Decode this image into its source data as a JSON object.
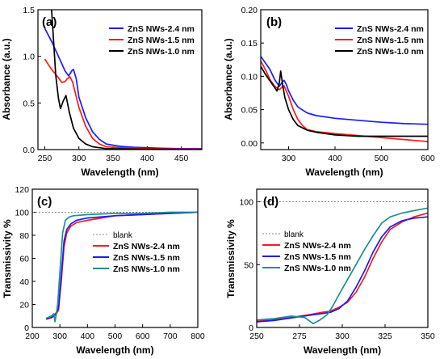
{
  "colors": {
    "blue": "#1a1aff",
    "red": "#ff1a1a",
    "black": "#000000",
    "teal": "#1a9090",
    "blank": "#888888"
  },
  "chart_data": [
    {
      "panel": "(a)",
      "type": "line",
      "xlabel": "Wavelength (nm)",
      "ylabel": "Absorbance (a.u.)",
      "xlim": [
        240,
        480
      ],
      "ylim": [
        0,
        1.5
      ],
      "xticks": [
        250,
        300,
        350,
        400,
        450
      ],
      "xtick_labels": [
        "250",
        "300",
        "350",
        "400",
        "450"
      ],
      "yticks": [
        0,
        0.5,
        1.0,
        1.5
      ],
      "ytick_labels": [
        "0.0",
        "0.5",
        "1.0",
        "1.5"
      ],
      "legend_position": "top-right",
      "series": [
        {
          "name": "ZnS NWs-2.4 nm",
          "color": "blue",
          "x": [
            250,
            260,
            270,
            280,
            285,
            290,
            292,
            296,
            300,
            310,
            320,
            330,
            340,
            360,
            380,
            400,
            420,
            450,
            480
          ],
          "y": [
            1.3,
            1.16,
            1.0,
            0.84,
            0.79,
            0.85,
            0.86,
            0.76,
            0.56,
            0.34,
            0.19,
            0.11,
            0.06,
            0.035,
            0.025,
            0.02,
            0.015,
            0.01,
            0.01
          ]
        },
        {
          "name": "ZnS NWs-1.5 nm",
          "color": "red",
          "x": [
            250,
            260,
            270,
            275,
            280,
            283,
            287,
            291,
            295,
            300,
            310,
            320,
            330,
            340,
            360,
            400,
            450,
            480
          ],
          "y": [
            0.97,
            0.86,
            0.77,
            0.72,
            0.73,
            0.76,
            0.78,
            0.72,
            0.6,
            0.45,
            0.25,
            0.12,
            0.06,
            0.03,
            0.02,
            0.01,
            0.005,
            0.005
          ]
        },
        {
          "name": "ZnS NWs-1.0 nm",
          "color": "black",
          "x": [
            260,
            263,
            266,
            270,
            273,
            277,
            281,
            286,
            292,
            300,
            310,
            320,
            340,
            380,
            480
          ],
          "y": [
            1.5,
            1.15,
            0.8,
            0.55,
            0.44,
            0.52,
            0.58,
            0.4,
            0.23,
            0.12,
            0.06,
            0.03,
            0.01,
            0.005,
            0.0
          ]
        }
      ]
    },
    {
      "panel": "(b)",
      "type": "line",
      "xlabel": "Wavelength (nm)",
      "ylabel": "Absorbance (a.u.)",
      "xlim": [
        240,
        600
      ],
      "ylim": [
        -0.01,
        0.2
      ],
      "xticks": [
        300,
        400,
        500,
        600
      ],
      "xtick_labels": [
        "300",
        "400",
        "500",
        "600"
      ],
      "yticks": [
        0,
        0.05,
        0.1,
        0.15,
        0.2
      ],
      "ytick_labels": [
        "0.00",
        "0.05",
        "0.10",
        "0.15",
        "0.20"
      ],
      "legend_position": "top-right",
      "series": [
        {
          "name": "ZnS NWs-2.4 nm",
          "color": "blue",
          "x": [
            240,
            250,
            260,
            270,
            280,
            285,
            290,
            295,
            300,
            310,
            320,
            340,
            360,
            400,
            450,
            500,
            550,
            600
          ],
          "y": [
            0.13,
            0.12,
            0.11,
            0.095,
            0.085,
            0.09,
            0.094,
            0.088,
            0.078,
            0.064,
            0.054,
            0.045,
            0.041,
            0.037,
            0.034,
            0.031,
            0.029,
            0.028
          ]
        },
        {
          "name": "ZnS NWs-1.5 nm",
          "color": "red",
          "x": [
            240,
            250,
            260,
            270,
            280,
            285,
            290,
            300,
            310,
            320,
            330,
            340,
            360,
            400,
            450,
            500,
            550,
            600
          ],
          "y": [
            0.123,
            0.11,
            0.095,
            0.085,
            0.08,
            0.083,
            0.086,
            0.07,
            0.05,
            0.035,
            0.026,
            0.02,
            0.017,
            0.014,
            0.011,
            0.008,
            0.005,
            0.002
          ]
        },
        {
          "name": "ZnS NWs-1.0 nm",
          "color": "black",
          "x": [
            240,
            250,
            260,
            270,
            275,
            280,
            283,
            287,
            292,
            300,
            310,
            320,
            340,
            360,
            400,
            450,
            500,
            550,
            600
          ],
          "y": [
            0.115,
            0.103,
            0.093,
            0.083,
            0.078,
            0.09,
            0.108,
            0.088,
            0.068,
            0.05,
            0.035,
            0.026,
            0.019,
            0.016,
            0.012,
            0.01,
            0.01,
            0.01,
            0.01
          ]
        }
      ]
    },
    {
      "panel": "(c)",
      "type": "line",
      "xlabel": "Wavelength (nm)",
      "ylabel": "Transmissivity %",
      "xlim": [
        200,
        800
      ],
      "ylim": [
        0,
        120
      ],
      "xticks": [
        200,
        300,
        400,
        500,
        600,
        700,
        800
      ],
      "xtick_labels": [
        "200",
        "300",
        "400",
        "500",
        "600",
        "700",
        "800"
      ],
      "yticks": [
        0,
        20,
        40,
        60,
        80,
        100,
        120
      ],
      "ytick_labels": [
        "0",
        "20",
        "40",
        "60",
        "80",
        "100",
        "120"
      ],
      "legend_position": "center-right",
      "series": [
        {
          "name": "blank",
          "color": "blank",
          "dashed": true,
          "x": [
            200,
            800
          ],
          "y": [
            100,
            100
          ]
        },
        {
          "name": "ZnS NWs-2.4 nm",
          "color": "red",
          "x": [
            250,
            270,
            285,
            295,
            305,
            315,
            325,
            340,
            360,
            400,
            450,
            500,
            600,
            700,
            800
          ],
          "y": [
            7,
            8.5,
            11,
            15,
            40,
            70,
            82,
            88,
            91,
            93,
            95,
            97,
            98,
            99,
            100
          ]
        },
        {
          "name": "ZnS NWs-1.5 nm",
          "color": "blue",
          "x": [
            250,
            270,
            285,
            295,
            305,
            315,
            325,
            340,
            360,
            400,
            450,
            500,
            600,
            700,
            800
          ],
          "y": [
            7.5,
            9,
            12,
            17,
            45,
            75,
            85,
            90,
            93,
            95,
            96,
            97,
            98,
            99,
            100
          ]
        },
        {
          "name": "ZnS NWs-1.0 nm",
          "color": "teal",
          "x": [
            250,
            270,
            278,
            282,
            286,
            292,
            300,
            310,
            320,
            335,
            350,
            400,
            500,
            600,
            700,
            800
          ],
          "y": [
            8,
            10,
            12,
            5,
            10,
            20,
            48,
            82,
            93,
            96,
            97,
            98,
            99,
            99,
            100,
            100
          ]
        }
      ]
    },
    {
      "panel": "(d)",
      "type": "line",
      "xlabel": "Wavelength (nm)",
      "ylabel": "Transmissivity %",
      "xlim": [
        250,
        350
      ],
      "ylim": [
        0,
        110
      ],
      "xticks": [
        250,
        275,
        300,
        325,
        350
      ],
      "xtick_labels": [
        "250",
        "275",
        "300",
        "325",
        "350"
      ],
      "yticks": [
        0,
        50,
        100
      ],
      "ytick_labels": [
        "0",
        "50",
        "100"
      ],
      "legend_position": "top-left",
      "series": [
        {
          "name": "blank",
          "color": "blank",
          "dashed": true,
          "x": [
            250,
            350
          ],
          "y": [
            100,
            100
          ]
        },
        {
          "name": "ZnS NWs-2.4 nm",
          "color": "red",
          "x": [
            250,
            260,
            270,
            280,
            288,
            293,
            298,
            303,
            308,
            313,
            318,
            323,
            328,
            335,
            342,
            350
          ],
          "y": [
            5,
            6,
            8,
            10,
            12,
            13,
            16,
            20,
            28,
            40,
            55,
            68,
            78,
            84,
            88,
            91
          ]
        },
        {
          "name": "ZnS NWs-1.5 nm",
          "color": "blue",
          "x": [
            250,
            260,
            270,
            280,
            288,
            293,
            298,
            303,
            308,
            313,
            318,
            323,
            328,
            335,
            342,
            350
          ],
          "y": [
            4.5,
            5.5,
            7.5,
            9.5,
            11,
            12,
            15,
            21,
            32,
            45,
            60,
            72,
            80,
            85,
            87,
            88
          ]
        },
        {
          "name": "ZnS NWs-1.0 nm",
          "color": "teal",
          "x": [
            250,
            260,
            270,
            278,
            283,
            287,
            291,
            294,
            298,
            303,
            308,
            313,
            318,
            323,
            328,
            335,
            342,
            350
          ],
          "y": [
            6,
            7,
            9,
            8,
            3,
            6,
            10,
            16,
            26,
            38,
            50,
            62,
            73,
            83,
            88,
            91,
            93,
            95
          ]
        }
      ]
    }
  ]
}
